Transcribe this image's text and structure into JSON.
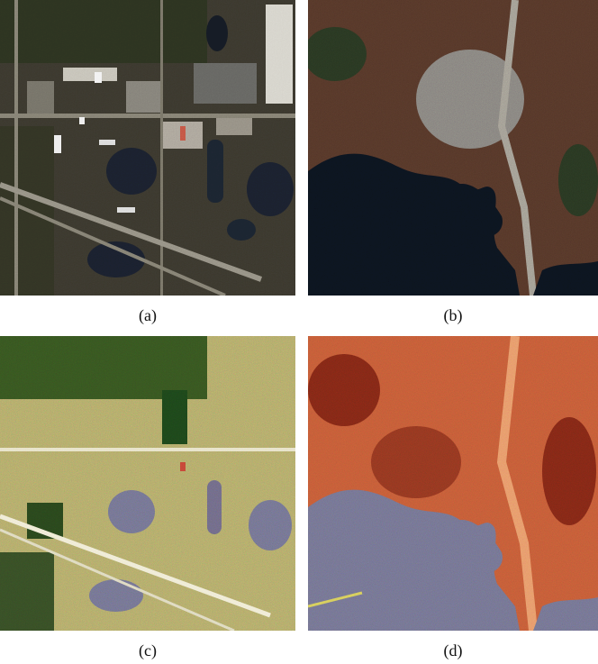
{
  "figure": {
    "panels": [
      {
        "id": "a",
        "caption": "(a)"
      },
      {
        "id": "b",
        "caption": "(b)"
      },
      {
        "id": "c",
        "caption": "(c)"
      },
      {
        "id": "d",
        "caption": "(d)"
      }
    ]
  },
  "colors": {
    "suburban_rgb_base": "#3e3a30",
    "harbour_rgb_base": "#5a3a2c",
    "false_color_c_base": "#b8b070",
    "false_color_d_base": "#c8613a",
    "water_dark": "#0e1420",
    "water_noise": "#7a7a98"
  }
}
